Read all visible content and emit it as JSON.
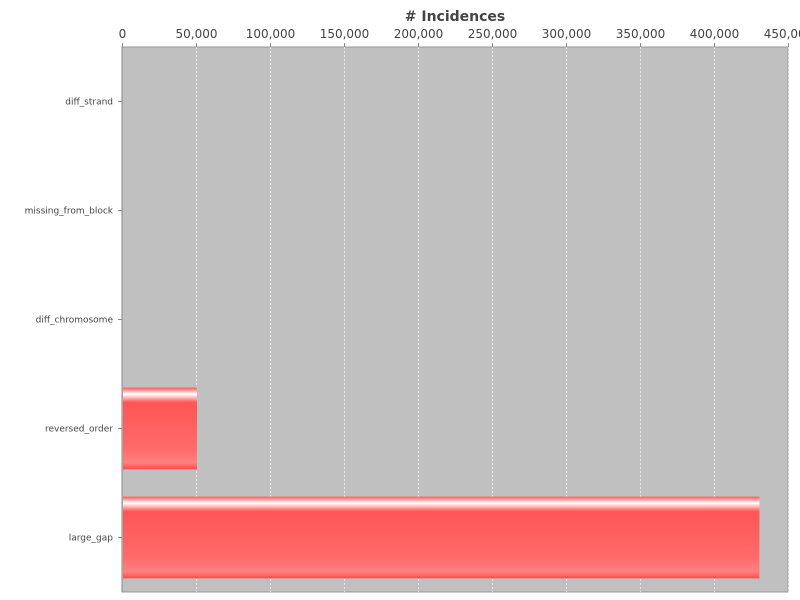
{
  "chart_data": {
    "type": "bar",
    "orientation": "horizontal",
    "title": "# Incidences",
    "xlabel": "",
    "ylabel": "",
    "categories": [
      "diff_strand",
      "missing_from_block",
      "diff_chromosome",
      "reversed_order",
      "large_gap"
    ],
    "values": [
      0,
      0,
      0,
      50000,
      430000
    ],
    "xlim": [
      0,
      450000
    ],
    "x_ticks": [
      0,
      50000,
      100000,
      150000,
      200000,
      250000,
      300000,
      350000,
      400000,
      450000
    ],
    "x_tick_labels": [
      "0",
      "50,000",
      "100,000",
      "150,000",
      "200,000",
      "250,000",
      "300,000",
      "350,000",
      "400,000",
      "450,000"
    ],
    "x_axis_position": "top",
    "grid": true,
    "legend": "none",
    "colors": {
      "plot_background": "#c0c0c0",
      "bar": "#ff5555",
      "bar_highlight": "#ffffff",
      "grid": "#e8e8e8",
      "axis": "#888888",
      "text": "#444444"
    }
  }
}
